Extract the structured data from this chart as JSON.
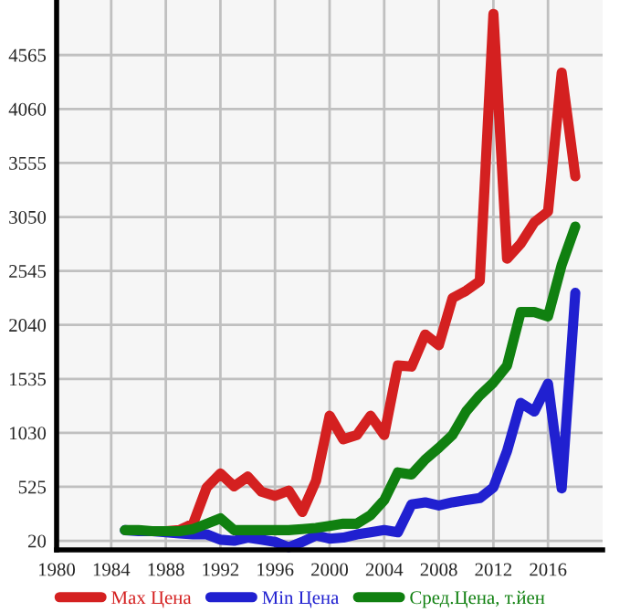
{
  "chart_data": {
    "type": "line",
    "x": [
      1985,
      1986,
      1987,
      1988,
      1989,
      1990,
      1991,
      1992,
      1993,
      1994,
      1995,
      1996,
      1997,
      1998,
      1999,
      2000,
      2001,
      2002,
      2003,
      2004,
      2005,
      2006,
      2007,
      2008,
      2009,
      2010,
      2011,
      2012,
      2013,
      2014,
      2015,
      2016,
      2017,
      2018
    ],
    "series": [
      {
        "name": "Max Цена",
        "color": "#d42020",
        "values": [
          null,
          null,
          null,
          110,
          120,
          180,
          520,
          650,
          530,
          620,
          480,
          440,
          490,
          290,
          580,
          1190,
          970,
          1010,
          1190,
          1010,
          1660,
          1650,
          1950,
          1850,
          2290,
          2360,
          2450,
          4950,
          2660,
          2800,
          3000,
          3100,
          4400,
          3430
        ]
      },
      {
        "name": "Min Цена",
        "color": "#2020d0",
        "values": [
          120,
          110,
          110,
          100,
          90,
          80,
          80,
          30,
          20,
          50,
          30,
          10,
          -40,
          10,
          70,
          40,
          50,
          80,
          100,
          120,
          100,
          360,
          380,
          350,
          380,
          400,
          420,
          520,
          860,
          1310,
          1230,
          1490,
          510,
          2340
        ]
      },
      {
        "name": "Сред.Цена, т.йен",
        "color": "#108010",
        "values": [
          120,
          120,
          110,
          110,
          110,
          130,
          180,
          230,
          120,
          120,
          120,
          120,
          120,
          130,
          140,
          160,
          180,
          180,
          260,
          400,
          660,
          640,
          780,
          890,
          1010,
          1230,
          1380,
          1500,
          1660,
          2160,
          2160,
          2120,
          2600,
          2960
        ]
      }
    ],
    "xlim": [
      1980,
      2020
    ],
    "xticks": [
      1980,
      1984,
      1988,
      1992,
      1996,
      2000,
      2004,
      2008,
      2012,
      2016
    ],
    "ylim": [
      -65,
      5080
    ],
    "yticks": [
      20,
      525,
      1030,
      1535,
      2040,
      2545,
      3050,
      3555,
      4060,
      4565
    ],
    "grid": true,
    "legend": "bottom",
    "marker": "none",
    "line_style": "solid"
  }
}
